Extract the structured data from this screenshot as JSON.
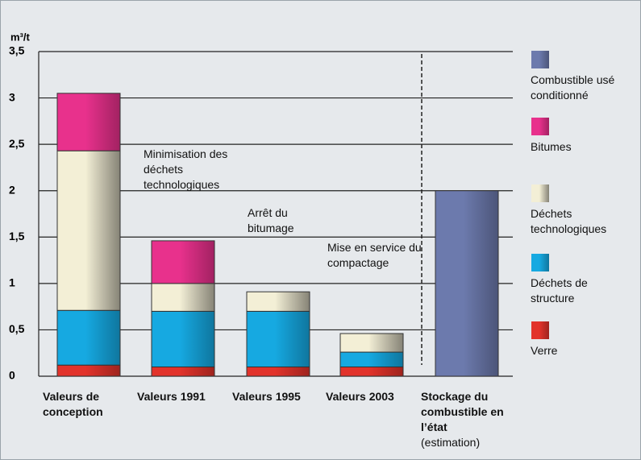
{
  "chart_data": {
    "type": "stacked_bar",
    "y_label": "m³/t",
    "categories": [
      "Valeurs de conception",
      "Valeurs 1991",
      "Valeurs 1995",
      "Valeurs 2003",
      "Stockage du combustible en l’état"
    ],
    "category_note": "(estimation)",
    "series": [
      {
        "name": "Verre",
        "color": "#e2332b",
        "values": [
          0.12,
          0.1,
          0.1,
          0.1,
          null
        ]
      },
      {
        "name": "Déchets de structure",
        "color": "#16a9e1",
        "values": [
          0.59,
          0.6,
          0.6,
          0.16,
          null
        ]
      },
      {
        "name": "Déchets technologiques",
        "color": "#f3efd6",
        "values": [
          1.72,
          0.3,
          0.21,
          0.2,
          null
        ]
      },
      {
        "name": "Bitumes",
        "color": "#e8318c",
        "values": [
          0.62,
          0.46,
          null,
          null,
          null
        ]
      },
      {
        "name": "Combustible usé conditionné",
        "color": "#6c7aad",
        "values": [
          null,
          null,
          null,
          null,
          2
        ]
      }
    ],
    "annotations": [
      "Minimisation des déchets technologiques",
      "Arrêt du bitumage",
      "Mise en service du compactage"
    ],
    "ylim": [
      0,
      3.5
    ],
    "yticks": [
      0,
      {
        "value": 0.5,
        "label": "0,5"
      },
      1,
      {
        "value": 1.5,
        "label": "1,5"
      },
      2,
      {
        "value": 2.5,
        "label": "2,5"
      },
      3,
      {
        "value": 3.5,
        "label": "3,5"
      }
    ],
    "grid": true
  }
}
